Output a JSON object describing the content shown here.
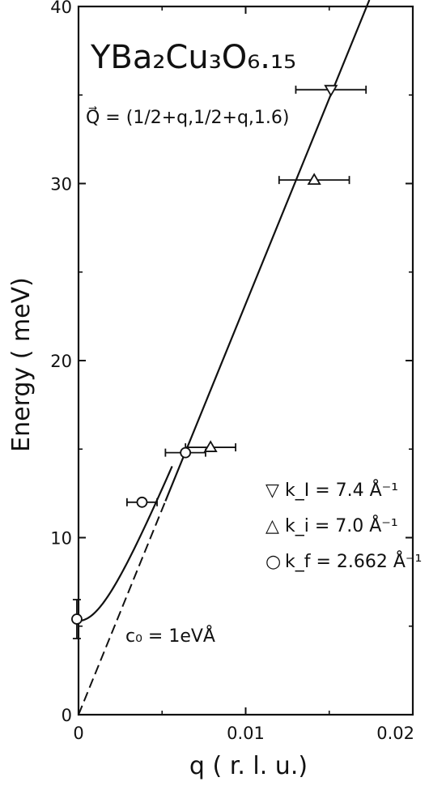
{
  "chart_data": {
    "type": "scatter",
    "title": "YBa₂Cu₃O₆.₁₅",
    "subtitle": "Q⃗ = (1/2+q,1/2+q,1.6)",
    "xlabel": "q  ( r. l. u.)",
    "ylabel": "Energy  ( meV)",
    "xlim": [
      0,
      0.02
    ],
    "ylim": [
      0,
      40
    ],
    "x_ticks": [
      0,
      0.01,
      0.02
    ],
    "x_tick_labels": [
      "0",
      "0.01",
      "0.02"
    ],
    "y_ticks": [
      0,
      10,
      20,
      30,
      40
    ],
    "y_tick_labels": [
      "0",
      "10",
      "20",
      "30",
      "40"
    ],
    "grid": false,
    "legend_position": "right",
    "series": [
      {
        "name": "k_I = 7.4 Å⁻¹",
        "marker": "triangle-down",
        "points": [
          {
            "x": 0.0151,
            "y": 35.3,
            "xerr": 0.0021
          }
        ]
      },
      {
        "name": "k_i = 7.0 Å⁻¹",
        "marker": "triangle-up",
        "points": [
          {
            "x": 0.0141,
            "y": 30.2,
            "xerr": 0.0021
          },
          {
            "x": 0.0079,
            "y": 15.1,
            "xerr": 0.0015
          }
        ]
      },
      {
        "name": "k_f = 2.662 Å⁻¹",
        "marker": "circle",
        "points": [
          {
            "x": 0.0038,
            "y": 12.0,
            "xerr": 0.0009
          },
          {
            "x": 0.0064,
            "y": 14.8,
            "xerr": 0.0012
          },
          {
            "x": -0.0001,
            "y": 5.4,
            "yerr": 1.1
          }
        ]
      }
    ],
    "lines": [
      {
        "style": "solid",
        "kind": "linear",
        "slope": 2320,
        "intercept": 0
      },
      {
        "style": "dashed",
        "kind": "linear",
        "slope": 2320,
        "intercept": 0
      },
      {
        "style": "solid",
        "kind": "gapped",
        "gap": 5.3,
        "slope": 2320
      }
    ],
    "annotation": "c₀ = 1eVÅ",
    "legend": {
      "entries": [
        {
          "symbol": "▽",
          "label": "k_I = 7.4 Å⁻¹"
        },
        {
          "symbol": "△",
          "label": "k_i = 7.0 Å⁻¹"
        },
        {
          "symbol": "○",
          "label": "k_f = 2.662 Å⁻¹"
        }
      ]
    }
  }
}
